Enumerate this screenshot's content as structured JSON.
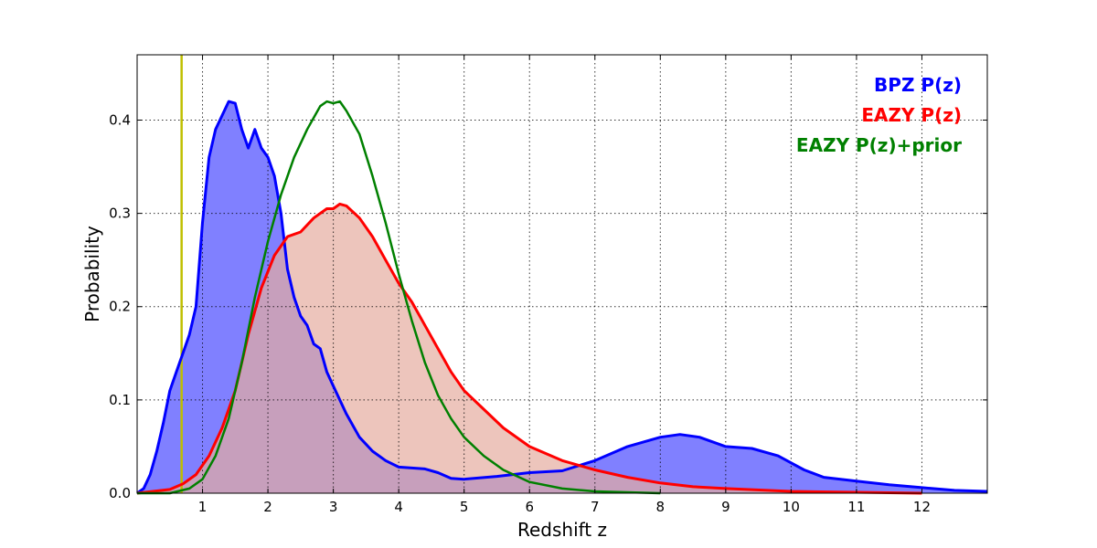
{
  "chart_data": {
    "type": "area",
    "xlabel": "Redshift z",
    "ylabel": "Probability",
    "xlim": [
      0,
      13
    ],
    "ylim": [
      0,
      0.47
    ],
    "x_ticks": [
      1,
      2,
      3,
      4,
      5,
      6,
      7,
      8,
      9,
      10,
      11,
      12
    ],
    "y_ticks": [
      0.0,
      0.1,
      0.2,
      0.3,
      0.4
    ],
    "grid": true,
    "legend_position": "top-right",
    "vline": {
      "x": 0.68,
      "color": "#bfbf00"
    },
    "series": [
      {
        "name": "BPZ P(z)",
        "color": "#0000ff",
        "fill": "#8080ff",
        "filled": true,
        "x": [
          0,
          0.1,
          0.2,
          0.3,
          0.4,
          0.5,
          0.6,
          0.7,
          0.8,
          0.9,
          1.0,
          1.1,
          1.2,
          1.3,
          1.4,
          1.5,
          1.6,
          1.7,
          1.8,
          1.9,
          2.0,
          2.1,
          2.2,
          2.3,
          2.4,
          2.5,
          2.6,
          2.7,
          2.8,
          2.9,
          3.0,
          3.2,
          3.4,
          3.6,
          3.8,
          4.0,
          4.2,
          4.4,
          4.6,
          4.8,
          5.0,
          5.5,
          6.0,
          6.5,
          7.0,
          7.5,
          8.0,
          8.3,
          8.6,
          9.0,
          9.4,
          9.8,
          10.2,
          10.5,
          11.0,
          11.5,
          12.0,
          12.5,
          13.0
        ],
        "y": [
          0.0,
          0.005,
          0.02,
          0.045,
          0.075,
          0.11,
          0.13,
          0.15,
          0.17,
          0.2,
          0.29,
          0.36,
          0.39,
          0.405,
          0.42,
          0.418,
          0.39,
          0.37,
          0.39,
          0.37,
          0.36,
          0.34,
          0.3,
          0.24,
          0.21,
          0.19,
          0.18,
          0.16,
          0.155,
          0.13,
          0.115,
          0.085,
          0.06,
          0.045,
          0.035,
          0.028,
          0.027,
          0.026,
          0.022,
          0.016,
          0.015,
          0.018,
          0.022,
          0.024,
          0.035,
          0.05,
          0.06,
          0.063,
          0.06,
          0.05,
          0.048,
          0.04,
          0.025,
          0.017,
          0.013,
          0.009,
          0.006,
          0.003,
          0.002
        ]
      },
      {
        "name": "EAZY P(z)",
        "color": "#ff0000",
        "fill": "#e6ada0",
        "filled": true,
        "x": [
          0,
          0.5,
          0.7,
          0.9,
          1.1,
          1.3,
          1.5,
          1.7,
          1.9,
          2.1,
          2.3,
          2.5,
          2.7,
          2.9,
          3.0,
          3.1,
          3.2,
          3.4,
          3.6,
          3.8,
          4.0,
          4.2,
          4.4,
          4.6,
          4.8,
          5.0,
          5.3,
          5.6,
          6.0,
          6.5,
          7.0,
          7.5,
          8.0,
          8.5,
          9.0,
          10.0,
          11.0,
          12.0
        ],
        "y": [
          0.0,
          0.004,
          0.01,
          0.02,
          0.04,
          0.07,
          0.11,
          0.17,
          0.22,
          0.255,
          0.275,
          0.28,
          0.295,
          0.305,
          0.305,
          0.31,
          0.308,
          0.295,
          0.275,
          0.25,
          0.225,
          0.205,
          0.18,
          0.155,
          0.13,
          0.11,
          0.09,
          0.07,
          0.05,
          0.035,
          0.025,
          0.017,
          0.011,
          0.007,
          0.005,
          0.002,
          0.001,
          0.0
        ]
      },
      {
        "name": "EAZY P(z)+prior",
        "color": "#008000",
        "fill": "#8b54a0",
        "filled": false,
        "x": [
          0,
          0.5,
          0.8,
          1.0,
          1.2,
          1.4,
          1.6,
          1.8,
          2.0,
          2.2,
          2.4,
          2.6,
          2.8,
          2.9,
          3.0,
          3.1,
          3.2,
          3.4,
          3.6,
          3.8,
          4.0,
          4.2,
          4.4,
          4.6,
          4.8,
          5.0,
          5.3,
          5.6,
          6.0,
          6.5,
          7.0,
          7.5,
          8.0
        ],
        "y": [
          0.0,
          0.0,
          0.005,
          0.015,
          0.04,
          0.08,
          0.14,
          0.21,
          0.27,
          0.32,
          0.36,
          0.39,
          0.415,
          0.42,
          0.418,
          0.42,
          0.41,
          0.385,
          0.34,
          0.29,
          0.235,
          0.185,
          0.14,
          0.105,
          0.08,
          0.06,
          0.04,
          0.025,
          0.012,
          0.005,
          0.002,
          0.001,
          0.0
        ]
      }
    ]
  }
}
